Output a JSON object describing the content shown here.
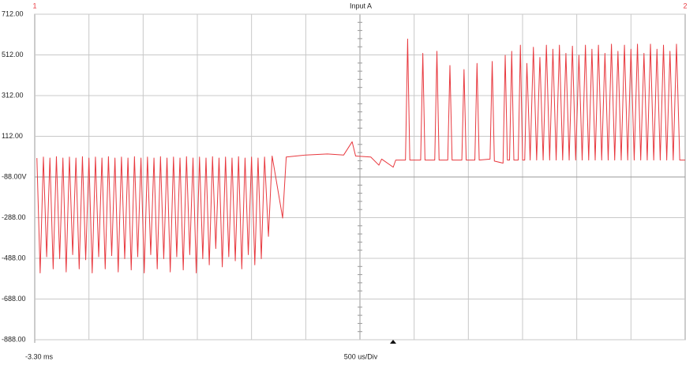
{
  "chart_data": {
    "type": "line",
    "title": "Input A",
    "channel_markers": [
      "1",
      "2"
    ],
    "xlabel": "500 us/Div",
    "xlim": [
      -3.3,
      2.7
    ],
    "xticks": [
      {
        "value": -3.3,
        "label": "-3.30 ms"
      }
    ],
    "ylim": [
      -888,
      712
    ],
    "yticks": [
      {
        "value": 712,
        "label": "712.00"
      },
      {
        "value": 512,
        "label": "512.00"
      },
      {
        "value": 312,
        "label": "312.00"
      },
      {
        "value": 112,
        "label": "112.00"
      },
      {
        "value": -88,
        "label": "-88.00V"
      },
      {
        "value": -288,
        "label": "-288.00"
      },
      {
        "value": -488,
        "label": "-488.00"
      },
      {
        "value": -688,
        "label": "-688.00"
      },
      {
        "value": -888,
        "label": "-888.00"
      }
    ],
    "grid": true,
    "series": [
      {
        "color": "#e8393f",
        "x": [
          -3.28,
          -3.25,
          -3.22,
          -3.19,
          -3.16,
          -3.13,
          -3.1,
          -3.07,
          -3.04,
          -3.01,
          -2.98,
          -2.95,
          -2.92,
          -2.89,
          -2.86,
          -2.83,
          -2.8,
          -2.77,
          -2.74,
          -2.71,
          -2.68,
          -2.65,
          -2.62,
          -2.59,
          -2.56,
          -2.53,
          -2.5,
          -2.47,
          -2.44,
          -2.41,
          -2.38,
          -2.35,
          -2.32,
          -2.29,
          -2.26,
          -2.23,
          -2.2,
          -2.17,
          -2.14,
          -2.11,
          -2.08,
          -2.05,
          -2.02,
          -1.99,
          -1.96,
          -1.93,
          -1.9,
          -1.87,
          -1.84,
          -1.81,
          -1.78,
          -1.75,
          -1.72,
          -1.69,
          -1.66,
          -1.63,
          -1.6,
          -1.57,
          -1.54,
          -1.51,
          -1.48,
          -1.45,
          -1.42,
          -1.39,
          -1.36,
          -1.33,
          -1.3,
          -1.27,
          -1.24,
          -1.21,
          -1.18,
          -1.144,
          -1.11,
          -1.013,
          -0.98,
          -0.8,
          -0.6,
          -0.45,
          -0.372,
          -0.34,
          -0.2,
          -0.125,
          -0.1,
          0.007,
          0.03,
          0.12,
          0.14,
          0.16,
          0.26,
          0.28,
          0.3,
          0.39,
          0.41,
          0.43,
          0.51,
          0.53,
          0.55,
          0.64,
          0.66,
          0.68,
          0.76,
          0.78,
          0.8,
          0.9,
          0.92,
          0.94,
          1.02,
          1.04,
          1.06,
          1.08,
          1.1,
          1.12,
          1.16,
          1.18,
          1.2,
          1.22,
          1.24,
          1.27,
          1.3,
          1.33,
          1.36,
          1.39,
          1.42,
          1.45,
          1.48,
          1.51,
          1.54,
          1.57,
          1.6,
          1.63,
          1.66,
          1.69,
          1.72,
          1.75,
          1.78,
          1.81,
          1.84,
          1.87,
          1.9,
          1.93,
          1.96,
          1.99,
          2.02,
          2.05,
          2.08,
          2.11,
          2.14,
          2.17,
          2.2,
          2.23,
          2.26,
          2.29,
          2.32,
          2.35,
          2.38,
          2.41,
          2.44,
          2.47,
          2.5,
          2.53,
          2.56,
          2.59,
          2.62,
          2.65,
          2.7
        ],
        "values": [
          5,
          -560,
          10,
          -480,
          5,
          -540,
          12,
          -490,
          5,
          -555,
          10,
          -470,
          5,
          -540,
          12,
          -495,
          5,
          -560,
          10,
          -480,
          5,
          -540,
          12,
          -475,
          5,
          -555,
          10,
          -490,
          5,
          -545,
          12,
          -480,
          5,
          -560,
          10,
          -470,
          5,
          -540,
          12,
          -490,
          5,
          -555,
          10,
          -480,
          5,
          -545,
          12,
          -470,
          5,
          -560,
          10,
          -490,
          5,
          -520,
          12,
          -440,
          5,
          -530,
          10,
          -480,
          5,
          -500,
          12,
          -540,
          5,
          -470,
          10,
          -520,
          5,
          -490,
          10,
          -380,
          15,
          -290,
          10,
          20,
          25,
          20,
          85,
          15,
          10,
          -30,
          0,
          -40,
          -5,
          -5,
          590,
          -5,
          -5,
          520,
          -5,
          -5,
          530,
          -5,
          -5,
          460,
          -5,
          -5,
          440,
          -5,
          -5,
          470,
          -5,
          0,
          480,
          -10,
          -20,
          510,
          -5,
          -5,
          530,
          -5,
          -5,
          560,
          -5,
          -5,
          470,
          -5,
          550,
          -5,
          500,
          -5,
          560,
          -5,
          540,
          -5,
          560,
          -5,
          520,
          -5,
          555,
          -5,
          510,
          -5,
          560,
          -5,
          540,
          -5,
          560,
          -5,
          520,
          -5,
          565,
          -5,
          530,
          -5,
          560,
          -5,
          540,
          -5,
          565,
          -5,
          520,
          -5,
          565,
          -5,
          540,
          -5,
          560,
          -5,
          530,
          -5,
          565,
          -5,
          -5
        ]
      }
    ]
  }
}
